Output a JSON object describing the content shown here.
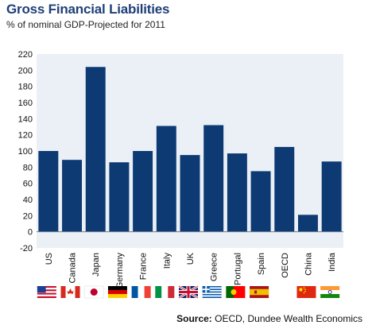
{
  "header": {
    "title": "Gross Financial Liabilities",
    "subtitle": "% of nominal GDP-Projected for 2011"
  },
  "footer": {
    "source_label": "Source:",
    "source_text": "OECD, Dundee Wealth Economics"
  },
  "chart_data": {
    "type": "bar",
    "title": "Gross Financial Liabilities",
    "subtitle": "% of nominal GDP-Projected for 2011",
    "categories": [
      "US",
      "Canada",
      "Japan",
      "Germany",
      "France",
      "Italy",
      "UK",
      "Greece",
      "Portugal",
      "Spain",
      "OECD",
      "China",
      "India"
    ],
    "values": [
      100,
      89,
      204,
      86,
      100,
      131,
      95,
      132,
      97,
      75,
      105,
      21,
      87
    ],
    "ylim": [
      -20,
      220
    ],
    "yticks": [
      -20,
      0,
      20,
      40,
      60,
      80,
      100,
      120,
      140,
      160,
      180,
      200,
      220
    ],
    "grid": false,
    "legend": "none",
    "bar_color": "#0d3a73",
    "plot_background": "#eaf0f6",
    "flags": [
      "us-flag-icon",
      "canada-flag-icon",
      "japan-flag-icon",
      "germany-flag-icon",
      "france-flag-icon",
      "italy-flag-icon",
      "uk-flag-icon",
      "greece-flag-icon",
      "portugal-flag-icon",
      "spain-flag-icon",
      "",
      "china-flag-icon",
      "india-flag-icon"
    ]
  }
}
